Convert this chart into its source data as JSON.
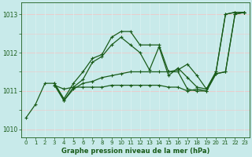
{
  "title": "Graphe pression niveau de la mer (hPa)",
  "xlim": [
    -0.5,
    23.5
  ],
  "ylim": [
    1009.8,
    1013.3
  ],
  "yticks": [
    1010,
    1011,
    1012,
    1013
  ],
  "xticks": [
    0,
    1,
    2,
    3,
    4,
    5,
    6,
    7,
    8,
    9,
    10,
    11,
    12,
    13,
    14,
    15,
    16,
    17,
    18,
    19,
    20,
    21,
    22,
    23
  ],
  "background_color": "#c8eaea",
  "grid_color_h": "#f0c8c8",
  "grid_color_v": "#d8f0f0",
  "line_color": "#1a5c1a",
  "lines": [
    {
      "x": [
        0,
        1,
        2,
        3,
        4,
        5,
        6,
        7,
        8,
        9,
        10,
        11,
        12,
        13,
        14,
        15,
        16,
        17,
        18,
        19,
        20,
        21,
        22,
        23
      ],
      "y": [
        1010.3,
        1010.65,
        1011.2,
        1011.2,
        1010.8,
        1011.2,
        1011.5,
        1011.85,
        1011.95,
        1012.4,
        1012.55,
        1012.55,
        1012.2,
        1012.2,
        1012.2,
        1011.5,
        1011.55,
        1011.7,
        1011.4,
        1011.05,
        1011.5,
        1013.0,
        1013.05,
        1013.05
      ]
    },
    {
      "x": [
        3,
        4,
        5,
        6,
        7,
        8,
        9,
        10,
        11,
        12,
        13,
        14,
        15,
        16,
        17,
        18,
        19,
        20,
        21,
        22,
        23
      ],
      "y": [
        1011.2,
        1010.75,
        1011.1,
        1011.3,
        1011.75,
        1011.9,
        1012.2,
        1012.4,
        1012.2,
        1012.0,
        1011.55,
        1012.15,
        1011.4,
        1011.6,
        1011.35,
        1011.1,
        1011.05,
        1011.5,
        1013.0,
        1013.05,
        1013.05
      ]
    },
    {
      "x": [
        3,
        4,
        5,
        6,
        7,
        8,
        9,
        10,
        11,
        12,
        13,
        14,
        15,
        16,
        17,
        18,
        19,
        20,
        21,
        22,
        23
      ],
      "y": [
        1011.15,
        1011.05,
        1011.1,
        1011.1,
        1011.1,
        1011.1,
        1011.15,
        1011.15,
        1011.15,
        1011.15,
        1011.15,
        1011.15,
        1011.1,
        1011.1,
        1011.0,
        1011.05,
        1011.0,
        1011.45,
        1011.5,
        1013.0,
        1013.05
      ]
    },
    {
      "x": [
        3,
        4,
        5,
        6,
        7,
        8,
        9,
        10,
        11,
        12,
        13,
        14,
        15,
        16,
        17,
        18,
        19,
        20,
        21,
        22,
        23
      ],
      "y": [
        1011.15,
        1010.75,
        1011.05,
        1011.2,
        1011.25,
        1011.35,
        1011.4,
        1011.45,
        1011.5,
        1011.5,
        1011.5,
        1011.5,
        1011.5,
        1011.5,
        1011.05,
        1011.0,
        1011.0,
        1011.45,
        1011.5,
        1013.0,
        1013.05
      ]
    }
  ]
}
